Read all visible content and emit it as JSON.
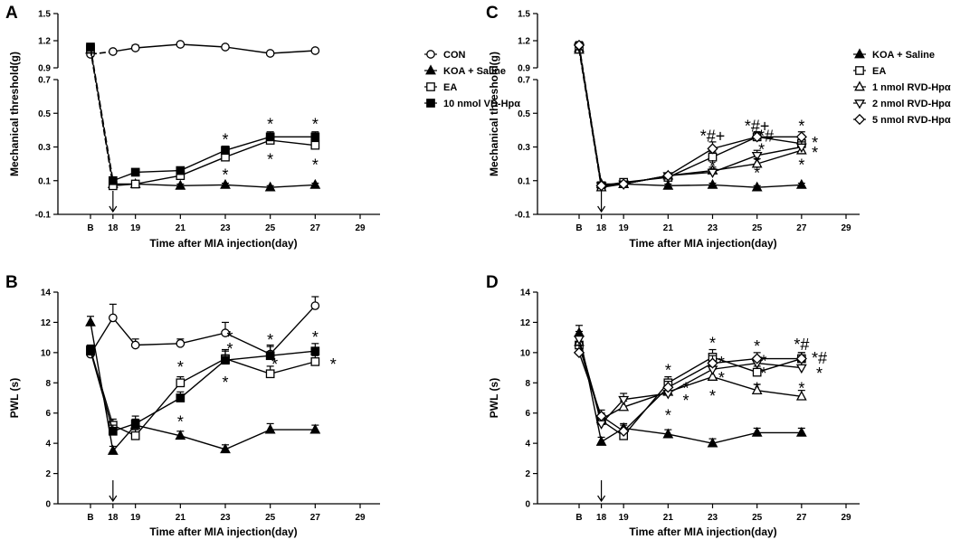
{
  "figure": {
    "panels": [
      {
        "id": "A",
        "letter": "A",
        "type": "line",
        "ylabel": "Mechanical threshold(g)",
        "xlabel": "Time after MIA injection(day)",
        "x_tick_labels": [
          "B",
          "18",
          "19",
          "21",
          "23",
          "25",
          "27",
          "29"
        ],
        "broken_y": true,
        "y_upper_ticks": [
          "0.9",
          "1.2",
          "1.5"
        ],
        "y_lower_ticks": [
          "-0.1",
          "0.1",
          "0.3",
          "0.5",
          "0.7"
        ],
        "legend": [
          "CON",
          "KOA + Saline",
          "EA",
          "10 nmol VD-Hpα"
        ],
        "annotations": [
          {
            "text": "*",
            "x": 23,
            "y": 0.36
          },
          {
            "text": "*",
            "x": 23,
            "y": 0.15
          },
          {
            "text": "*",
            "x": 25,
            "y": 0.45
          },
          {
            "text": "*",
            "x": 25,
            "y": 0.24
          },
          {
            "text": "*",
            "x": 27,
            "y": 0.45
          },
          {
            "text": "*",
            "x": 27,
            "y": 0.21
          }
        ]
      },
      {
        "id": "C",
        "letter": "C",
        "type": "line",
        "ylabel": "Mechanical threshold(g)",
        "xlabel": "Time after MIA injection(day)",
        "x_tick_labels": [
          "B",
          "18",
          "19",
          "21",
          "23",
          "25",
          "27",
          "29"
        ],
        "broken_y": true,
        "y_upper_ticks": [
          "0.9",
          "1.2",
          "1.5"
        ],
        "y_lower_ticks": [
          "-0.1",
          "0.1",
          "0.3",
          "0.5",
          "0.7"
        ],
        "legend": [
          "KOA + Saline",
          "EA",
          "1 nmol RVD-Hpα",
          "2 nmol RVD-Hpα",
          "5 nmol RVD-Hpα"
        ],
        "annotations": [
          {
            "text": "*#+",
            "x": 23,
            "y": 0.38
          },
          {
            "text": "*",
            "x": 23,
            "y": 0.2
          },
          {
            "text": "*#+",
            "x": 25,
            "y": 0.44
          },
          {
            "text": "*#",
            "x": 25.4,
            "y": 0.38
          },
          {
            "text": "*",
            "x": 25.2,
            "y": 0.3
          },
          {
            "text": "*",
            "x": 25,
            "y": 0.22
          },
          {
            "text": "*",
            "x": 25,
            "y": 0.16
          },
          {
            "text": "*",
            "x": 27,
            "y": 0.44
          },
          {
            "text": "*",
            "x": 27.6,
            "y": 0.34
          },
          {
            "text": "*",
            "x": 27.6,
            "y": 0.28
          },
          {
            "text": "*",
            "x": 27,
            "y": 0.21
          }
        ]
      },
      {
        "id": "B",
        "letter": "B",
        "type": "line",
        "ylabel": "PWL (s)",
        "xlabel": "Time after MIA injection(day)",
        "x_tick_labels": [
          "B",
          "18",
          "19",
          "21",
          "23",
          "25",
          "27",
          "29"
        ],
        "broken_y": false,
        "y_ticks": [
          "0",
          "2",
          "4",
          "6",
          "8",
          "10",
          "12",
          "14"
        ],
        "annotations": [
          {
            "text": "*",
            "x": 21,
            "y": 9.2
          },
          {
            "text": "*",
            "x": 21,
            "y": 5.6
          },
          {
            "text": "*",
            "x": 23.2,
            "y": 11.2
          },
          {
            "text": "*",
            "x": 23.2,
            "y": 10.4
          },
          {
            "text": "*",
            "x": 23,
            "y": 8.2
          },
          {
            "text": "*",
            "x": 25,
            "y": 11.0
          },
          {
            "text": "*",
            "x": 25.2,
            "y": 9.4
          },
          {
            "text": "*",
            "x": 27,
            "y": 11.2
          },
          {
            "text": "*",
            "x": 27.8,
            "y": 9.4
          }
        ]
      },
      {
        "id": "D",
        "letter": "D",
        "type": "line",
        "ylabel": "PWL (s)",
        "xlabel": "Time after MIA injection(day)",
        "x_tick_labels": [
          "B",
          "18",
          "19",
          "21",
          "23",
          "25",
          "27",
          "29"
        ],
        "broken_y": false,
        "y_ticks": [
          "0",
          "2",
          "4",
          "6",
          "8",
          "10",
          "12",
          "14"
        ],
        "annotations": [
          {
            "text": "*",
            "x": 21,
            "y": 9.0
          },
          {
            "text": "*",
            "x": 21.8,
            "y": 7.8
          },
          {
            "text": "*",
            "x": 21.8,
            "y": 7.0
          },
          {
            "text": "*",
            "x": 21,
            "y": 6.0
          },
          {
            "text": "*",
            "x": 23,
            "y": 10.8
          },
          {
            "text": "*",
            "x": 23.4,
            "y": 9.5
          },
          {
            "text": "*",
            "x": 23.4,
            "y": 8.5
          },
          {
            "text": "*",
            "x": 23,
            "y": 7.3
          },
          {
            "text": "*",
            "x": 25,
            "y": 10.6
          },
          {
            "text": "*",
            "x": 25.3,
            "y": 9.6
          },
          {
            "text": "*",
            "x": 25.3,
            "y": 8.8
          },
          {
            "text": "*",
            "x": 25,
            "y": 7.8
          },
          {
            "text": "*#",
            "x": 27,
            "y": 10.7
          },
          {
            "text": "*#",
            "x": 27.8,
            "y": 9.8
          },
          {
            "text": "*",
            "x": 27.8,
            "y": 8.8
          },
          {
            "text": "*",
            "x": 27,
            "y": 7.8
          }
        ]
      }
    ]
  },
  "chart_data": [
    {
      "type": "line",
      "panel": "A",
      "title": "",
      "xlabel": "Time after MIA injection(day)",
      "ylabel": "Mechanical threshold(g)",
      "x": [
        17,
        18,
        19,
        21,
        23,
        25,
        27
      ],
      "x_tick_labels": [
        "B",
        "18",
        "19",
        "21",
        "23",
        "25",
        "27",
        "29"
      ],
      "xlim": [
        16.5,
        29
      ],
      "ylim_lower": [
        -0.1,
        0.7
      ],
      "ylim_upper": [
        0.9,
        1.5
      ],
      "series": [
        {
          "name": "CON",
          "marker": "circle-open",
          "values": [
            1.05,
            1.08,
            1.12,
            1.16,
            1.13,
            1.06,
            1.09
          ],
          "errors": [
            0.02,
            0.02,
            0.03,
            0.02,
            0.02,
            0.02,
            0.02
          ]
        },
        {
          "name": "KOA + Saline",
          "marker": "triangle-filled",
          "values": [
            1.1,
            0.08,
            0.08,
            0.07,
            0.075,
            0.06,
            0.075
          ],
          "errors": [
            0.02,
            0.01,
            0.01,
            0.01,
            0.01,
            0.01,
            0.01
          ]
        },
        {
          "name": "EA",
          "marker": "square-open",
          "values": [
            1.11,
            0.07,
            0.08,
            0.13,
            0.24,
            0.34,
            0.31
          ],
          "errors": [
            0.02,
            0.01,
            0.01,
            0.015,
            0.02,
            0.03,
            0.03
          ]
        },
        {
          "name": "10 nmol VD-Hpα",
          "marker": "square-filled",
          "values": [
            1.13,
            0.1,
            0.15,
            0.16,
            0.28,
            0.36,
            0.36
          ],
          "errors": [
            0.02,
            0.01,
            0.01,
            0.015,
            0.025,
            0.03,
            0.03
          ]
        }
      ]
    },
    {
      "type": "line",
      "panel": "C",
      "title": "",
      "xlabel": "Time after MIA injection(day)",
      "ylabel": "Mechanical threshold(g)",
      "x": [
        17,
        18,
        19,
        21,
        23,
        25,
        27
      ],
      "x_tick_labels": [
        "B",
        "18",
        "19",
        "21",
        "23",
        "25",
        "27",
        "29"
      ],
      "xlim": [
        16.5,
        29
      ],
      "ylim_lower": [
        -0.1,
        0.7
      ],
      "ylim_upper": [
        0.9,
        1.5
      ],
      "series": [
        {
          "name": "KOA + Saline",
          "marker": "triangle-filled",
          "values": [
            1.12,
            0.08,
            0.08,
            0.07,
            0.075,
            0.06,
            0.075
          ],
          "errors": [
            0.04,
            0.01,
            0.01,
            0.01,
            0.01,
            0.01,
            0.01
          ]
        },
        {
          "name": "EA",
          "marker": "square-open",
          "values": [
            1.14,
            0.07,
            0.09,
            0.12,
            0.24,
            0.36,
            0.32
          ],
          "errors": [
            0.04,
            0.01,
            0.01,
            0.015,
            0.03,
            0.03,
            0.03
          ]
        },
        {
          "name": "1 nmol RVD-Hpα",
          "marker": "triangle-open",
          "values": [
            1.1,
            0.06,
            0.08,
            0.13,
            0.16,
            0.2,
            0.28
          ],
          "errors": [
            0.04,
            0.01,
            0.01,
            0.015,
            0.02,
            0.03,
            0.03
          ]
        },
        {
          "name": "2 nmol RVD-Hpα",
          "marker": "triangle-down-open",
          "values": [
            1.13,
            0.07,
            0.08,
            0.13,
            0.15,
            0.25,
            0.3
          ],
          "errors": [
            0.04,
            0.01,
            0.01,
            0.015,
            0.02,
            0.03,
            0.03
          ]
        },
        {
          "name": "5 nmol RVD-Hpα",
          "marker": "diamond-open",
          "values": [
            1.15,
            0.07,
            0.08,
            0.13,
            0.29,
            0.36,
            0.36
          ],
          "errors": [
            0.04,
            0.01,
            0.01,
            0.015,
            0.04,
            0.03,
            0.03
          ]
        }
      ]
    },
    {
      "type": "line",
      "panel": "B",
      "title": "",
      "xlabel": "Time after MIA injection(day)",
      "ylabel": "PWL (s)",
      "x": [
        17,
        18,
        19,
        21,
        23,
        25,
        27
      ],
      "x_tick_labels": [
        "B",
        "18",
        "19",
        "21",
        "23",
        "25",
        "27",
        "29"
      ],
      "xlim": [
        16.5,
        29
      ],
      "ylim": [
        0,
        14
      ],
      "series": [
        {
          "name": "CON",
          "marker": "circle-open",
          "values": [
            9.9,
            12.3,
            10.5,
            10.6,
            11.3,
            9.9,
            13.1
          ],
          "errors": [
            0.3,
            0.9,
            0.4,
            0.3,
            0.7,
            0.6,
            0.6
          ]
        },
        {
          "name": "KOA + Saline",
          "marker": "triangle-filled",
          "values": [
            12.0,
            3.5,
            5.2,
            4.5,
            3.6,
            4.9,
            4.9
          ],
          "errors": [
            0.4,
            0.3,
            0.4,
            0.3,
            0.3,
            0.4,
            0.3
          ]
        },
        {
          "name": "EA",
          "marker": "square-open",
          "values": [
            10.2,
            5.2,
            4.5,
            8.0,
            9.6,
            8.6,
            9.4
          ],
          "errors": [
            0.3,
            0.4,
            0.4,
            0.4,
            0.6,
            0.5,
            0.4
          ]
        },
        {
          "name": "10 nmol VD-Hpα",
          "marker": "square-filled",
          "values": [
            10.1,
            4.8,
            5.3,
            7.0,
            9.5,
            9.8,
            10.1
          ],
          "errors": [
            0.3,
            0.4,
            0.5,
            0.4,
            0.6,
            0.6,
            0.5
          ]
        }
      ]
    },
    {
      "type": "line",
      "panel": "D",
      "title": "",
      "xlabel": "Time after MIA injection(day)",
      "ylabel": "PWL (s)",
      "x": [
        17,
        18,
        19,
        21,
        23,
        25,
        27
      ],
      "x_tick_labels": [
        "B",
        "18",
        "19",
        "21",
        "23",
        "25",
        "27",
        "29"
      ],
      "xlim": [
        16.5,
        29
      ],
      "ylim": [
        0,
        14
      ],
      "series": [
        {
          "name": "KOA + Saline",
          "marker": "triangle-filled",
          "values": [
            11.3,
            4.1,
            5.0,
            4.6,
            4.0,
            4.7,
            4.7
          ],
          "errors": [
            0.5,
            0.3,
            0.3,
            0.3,
            0.3,
            0.3,
            0.3
          ]
        },
        {
          "name": "EA",
          "marker": "square-open",
          "values": [
            10.5,
            5.5,
            4.5,
            8.0,
            9.7,
            8.7,
            9.6
          ],
          "errors": [
            0.5,
            0.4,
            0.3,
            0.4,
            0.5,
            0.4,
            0.4
          ]
        },
        {
          "name": "1 nmol RVD-Hpα",
          "marker": "triangle-open",
          "values": [
            10.7,
            5.6,
            6.4,
            7.4,
            8.4,
            7.5,
            7.1
          ],
          "errors": [
            0.5,
            0.4,
            0.4,
            0.4,
            0.5,
            0.4,
            0.4
          ]
        },
        {
          "name": "2 nmol RVD-Hpα",
          "marker": "triangle-down-open",
          "values": [
            10.9,
            5.3,
            6.9,
            7.3,
            8.9,
            9.3,
            9.0
          ],
          "errors": [
            0.5,
            0.4,
            0.4,
            0.4,
            0.5,
            0.4,
            0.4
          ]
        },
        {
          "name": "5 nmol RVD-Hpα",
          "marker": "diamond-open",
          "values": [
            10.0,
            5.8,
            4.8,
            7.7,
            9.3,
            9.6,
            9.6
          ],
          "errors": [
            0.5,
            0.4,
            0.4,
            0.4,
            0.5,
            0.4,
            0.4
          ]
        }
      ]
    }
  ]
}
